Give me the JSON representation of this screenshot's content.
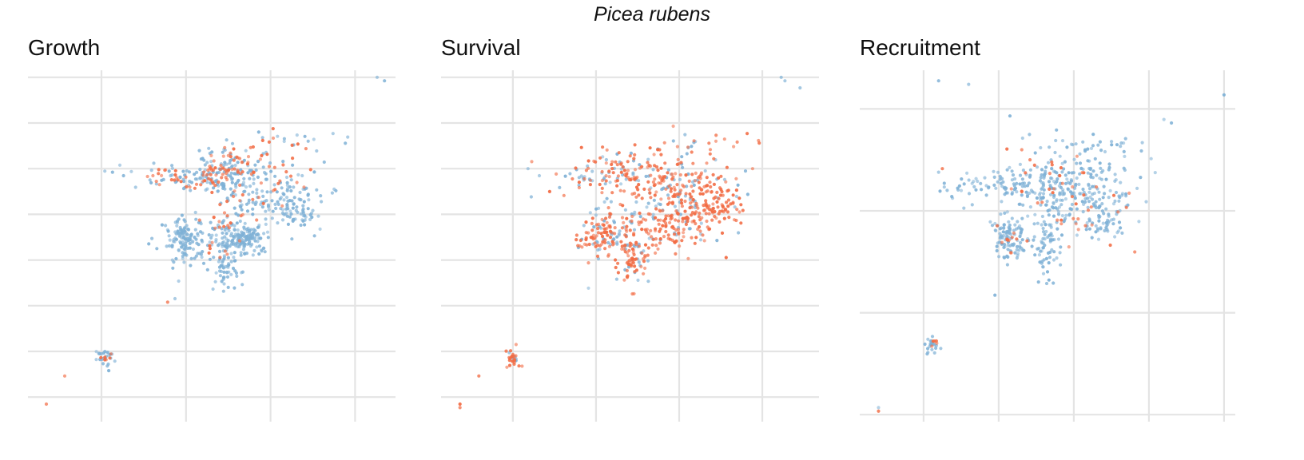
{
  "figure": {
    "title": "Picea rubens"
  },
  "colors": {
    "grid": "#e4e4e4",
    "series_a": "#7fb1d6",
    "series_b": "#f26b43"
  },
  "chart_data": [
    {
      "type": "scatter",
      "title": "Growth",
      "xlabel": "",
      "ylabel": "",
      "grid": true,
      "legend": "none",
      "xlim": [
        0,
        100
      ],
      "ylim": [
        0,
        100
      ],
      "x_gridlines": [
        20,
        43,
        66,
        89
      ],
      "y_gridlines": [
        7,
        20,
        33,
        46,
        59,
        72,
        85,
        98
      ],
      "clusters": [
        {
          "series": "a",
          "x": 43,
          "y": 52,
          "sx": 3,
          "sy": 3,
          "n": 130
        },
        {
          "series": "a",
          "x": 59,
          "y": 52,
          "sx": 3,
          "sy": 2,
          "n": 130
        },
        {
          "series": "a",
          "x": 54,
          "y": 46,
          "sx": 2,
          "sy": 5,
          "n": 90
        },
        {
          "series": "a",
          "x": 63,
          "y": 65,
          "sx": 8,
          "sy": 6,
          "n": 150
        },
        {
          "series": "a",
          "x": 46,
          "y": 69,
          "sx": 8,
          "sy": 2,
          "n": 80
        },
        {
          "series": "a",
          "x": 73,
          "y": 60,
          "sx": 3,
          "sy": 3,
          "n": 55
        },
        {
          "series": "a",
          "x": 54,
          "y": 73,
          "sx": 4,
          "sy": 3,
          "n": 45
        },
        {
          "series": "a",
          "x": 21,
          "y": 18,
          "sx": 1,
          "sy": 1.5,
          "n": 22
        },
        {
          "series": "b",
          "x": 51,
          "y": 71,
          "sx": 3,
          "sy": 2,
          "n": 30
        },
        {
          "series": "b",
          "x": 57,
          "y": 75,
          "sx": 3,
          "sy": 2,
          "n": 20
        },
        {
          "series": "b",
          "x": 40,
          "y": 70,
          "sx": 6,
          "sy": 2,
          "n": 25
        },
        {
          "series": "b",
          "x": 65,
          "y": 68,
          "sx": 6,
          "sy": 4,
          "n": 30
        },
        {
          "series": "b",
          "x": 53,
          "y": 55,
          "sx": 3,
          "sy": 5,
          "n": 25
        },
        {
          "series": "b",
          "x": 21,
          "y": 18,
          "sx": 1,
          "sy": 1.5,
          "n": 6
        },
        {
          "series": "a",
          "x": 72,
          "y": 80,
          "sx": 6,
          "sy": 2,
          "n": 10
        },
        {
          "series": "b",
          "x": 68,
          "y": 79,
          "sx": 4,
          "sy": 2,
          "n": 8
        }
      ],
      "points": [
        {
          "series": "a",
          "x": 97,
          "y": 97
        },
        {
          "series": "a",
          "x": 95,
          "y": 98
        },
        {
          "series": "a",
          "x": 87,
          "y": 81
        },
        {
          "series": "a",
          "x": 83,
          "y": 82
        },
        {
          "series": "a",
          "x": 25,
          "y": 73
        },
        {
          "series": "a",
          "x": 23,
          "y": 71
        },
        {
          "series": "a",
          "x": 26,
          "y": 70
        },
        {
          "series": "b",
          "x": 34,
          "y": 70
        },
        {
          "series": "a",
          "x": 41,
          "y": 40
        },
        {
          "series": "a",
          "x": 40,
          "y": 35
        },
        {
          "series": "b",
          "x": 38,
          "y": 34
        },
        {
          "series": "b",
          "x": 10,
          "y": 13
        },
        {
          "series": "b",
          "x": 5,
          "y": 5
        }
      ]
    },
    {
      "type": "scatter",
      "title": "Survival",
      "xlabel": "",
      "ylabel": "",
      "grid": true,
      "legend": "none",
      "xlim": [
        0,
        100
      ],
      "ylim": [
        0,
        100
      ],
      "x_gridlines": [
        19,
        41,
        63,
        85
      ],
      "y_gridlines": [
        7,
        20,
        33,
        46,
        59,
        72,
        85,
        98
      ],
      "clusters": [
        {
          "series": "b",
          "x": 60,
          "y": 55,
          "sx": 6,
          "sy": 4,
          "n": 110
        },
        {
          "series": "b",
          "x": 64,
          "y": 66,
          "sx": 7,
          "sy": 5,
          "n": 150
        },
        {
          "series": "b",
          "x": 47,
          "y": 70,
          "sx": 8,
          "sy": 3,
          "n": 90
        },
        {
          "series": "b",
          "x": 42,
          "y": 53,
          "sx": 3,
          "sy": 3,
          "n": 70
        },
        {
          "series": "b",
          "x": 50,
          "y": 47,
          "sx": 2,
          "sy": 5,
          "n": 60
        },
        {
          "series": "b",
          "x": 73,
          "y": 61,
          "sx": 4,
          "sy": 3,
          "n": 50
        },
        {
          "series": "b",
          "x": 19,
          "y": 18,
          "sx": 1,
          "sy": 1.5,
          "n": 22
        },
        {
          "series": "a",
          "x": 62,
          "y": 65,
          "sx": 8,
          "sy": 6,
          "n": 80
        },
        {
          "series": "a",
          "x": 45,
          "y": 55,
          "sx": 4,
          "sy": 4,
          "n": 45
        },
        {
          "series": "a",
          "x": 45,
          "y": 70,
          "sx": 8,
          "sy": 3,
          "n": 40
        },
        {
          "series": "a",
          "x": 52,
          "y": 48,
          "sx": 3,
          "sy": 5,
          "n": 25
        },
        {
          "series": "a",
          "x": 19,
          "y": 19,
          "sx": 1,
          "sy": 1,
          "n": 5
        },
        {
          "series": "b",
          "x": 72,
          "y": 80,
          "sx": 6,
          "sy": 2,
          "n": 10
        },
        {
          "series": "a",
          "x": 66,
          "y": 80,
          "sx": 4,
          "sy": 2,
          "n": 6
        }
      ],
      "points": [
        {
          "series": "a",
          "x": 90,
          "y": 98
        },
        {
          "series": "a",
          "x": 95,
          "y": 95
        },
        {
          "series": "a",
          "x": 91,
          "y": 97
        },
        {
          "series": "b",
          "x": 84,
          "y": 80
        },
        {
          "series": "b",
          "x": 81,
          "y": 82
        },
        {
          "series": "a",
          "x": 23,
          "y": 72
        },
        {
          "series": "a",
          "x": 26,
          "y": 70
        },
        {
          "series": "b",
          "x": 24,
          "y": 74
        },
        {
          "series": "a",
          "x": 39,
          "y": 38
        },
        {
          "series": "b",
          "x": 10,
          "y": 13
        },
        {
          "series": "b",
          "x": 5,
          "y": 5
        },
        {
          "series": "b",
          "x": 5,
          "y": 4
        }
      ]
    },
    {
      "type": "scatter",
      "title": "Recruitment",
      "xlabel": "",
      "ylabel": "",
      "grid": true,
      "legend": "none",
      "xlim": [
        0,
        100
      ],
      "ylim": [
        0,
        100
      ],
      "x_gridlines": [
        17,
        37,
        57,
        77,
        97
      ],
      "y_gridlines": [
        2,
        31,
        60,
        89
      ],
      "clusters": [
        {
          "series": "a",
          "x": 57,
          "y": 68,
          "sx": 8,
          "sy": 6,
          "n": 210
        },
        {
          "series": "a",
          "x": 40,
          "y": 67,
          "sx": 9,
          "sy": 2.5,
          "n": 100
        },
        {
          "series": "a",
          "x": 40,
          "y": 53,
          "sx": 3,
          "sy": 3,
          "n": 100
        },
        {
          "series": "a",
          "x": 50,
          "y": 52,
          "sx": 2,
          "sy": 6,
          "n": 80
        },
        {
          "series": "a",
          "x": 64,
          "y": 58,
          "sx": 4,
          "sy": 3,
          "n": 60
        },
        {
          "series": "a",
          "x": 19,
          "y": 22,
          "sx": 1,
          "sy": 1.5,
          "n": 22
        },
        {
          "series": "b",
          "x": 52,
          "y": 70,
          "sx": 6,
          "sy": 4,
          "n": 25
        },
        {
          "series": "b",
          "x": 60,
          "y": 58,
          "sx": 5,
          "sy": 5,
          "n": 20
        },
        {
          "series": "b",
          "x": 40,
          "y": 52,
          "sx": 3,
          "sy": 3,
          "n": 12
        },
        {
          "series": "b",
          "x": 19,
          "y": 22,
          "sx": 1,
          "sy": 1,
          "n": 5
        },
        {
          "series": "a",
          "x": 70,
          "y": 77,
          "sx": 6,
          "sy": 2,
          "n": 14
        }
      ],
      "points": [
        {
          "series": "a",
          "x": 21,
          "y": 97
        },
        {
          "series": "a",
          "x": 29,
          "y": 96
        },
        {
          "series": "a",
          "x": 97,
          "y": 93
        },
        {
          "series": "a",
          "x": 81,
          "y": 86
        },
        {
          "series": "a",
          "x": 83,
          "y": 85
        },
        {
          "series": "a",
          "x": 40,
          "y": 87
        },
        {
          "series": "a",
          "x": 21,
          "y": 71
        },
        {
          "series": "b",
          "x": 22,
          "y": 72
        },
        {
          "series": "a",
          "x": 36,
          "y": 36
        },
        {
          "series": "a",
          "x": 5,
          "y": 4
        },
        {
          "series": "b",
          "x": 5,
          "y": 3
        }
      ]
    }
  ]
}
